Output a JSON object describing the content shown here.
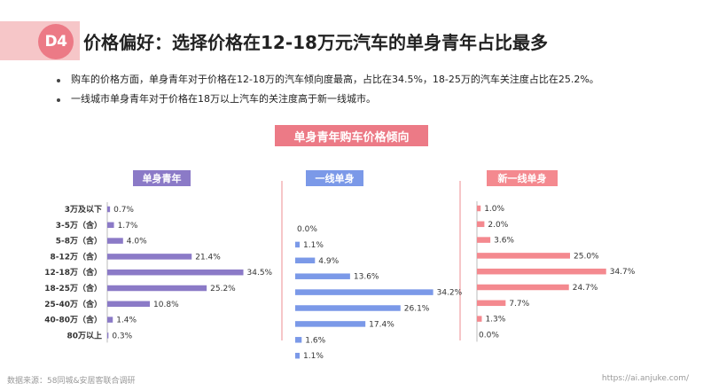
{
  "header": {
    "badge": "D4",
    "title": "价格偏好：选择价格在12-18万元汽车的单身青年占比最多"
  },
  "bullets": [
    "购车的价格方面，单身青年对于价格在12-18万的汽车倾向度最高，占比在34.5%，18-25万的汽车关注度占比在25.2%。",
    "一线城市单身青年对于价格在18万以上汽车的关注度高于新一线城市。"
  ],
  "footer": {
    "source": "数据来源：58同城&安居客联合调研",
    "url": "https://ai.anjuke.com/"
  },
  "colors": {
    "accent": "#ec7a86",
    "single_youth": "#8b7ac7",
    "tier1": "#7b99e8",
    "new_tier1": "#f4898f"
  },
  "chart_data": {
    "type": "bar",
    "orientation": "horizontal",
    "title": "单身青年购车价格倾向",
    "categories": [
      "3万及以下",
      "3-5万（含）",
      "5-8万（含）",
      "8-12万（含）",
      "12-18万（含）",
      "18-25万（含）",
      "25-40万（含）",
      "40-80万（含）",
      "80万以上"
    ],
    "series": [
      {
        "name": "单身青年",
        "color": "#8b7ac7",
        "values": [
          0.7,
          1.7,
          4.0,
          21.4,
          34.5,
          25.2,
          10.8,
          1.4,
          0.3
        ]
      },
      {
        "name": "一线单身",
        "color": "#7b99e8",
        "values": [
          0.0,
          1.1,
          4.9,
          13.6,
          34.2,
          26.1,
          17.4,
          1.6,
          1.1
        ]
      },
      {
        "name": "新一线单身",
        "color": "#f4898f",
        "values": [
          1.0,
          2.0,
          3.6,
          25.0,
          34.7,
          24.7,
          7.7,
          1.3,
          0.0
        ]
      }
    ],
    "unit": "%"
  }
}
